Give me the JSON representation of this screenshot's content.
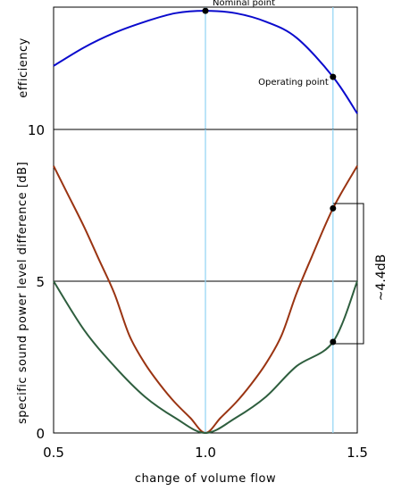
{
  "chart_data": [
    {
      "type": "line",
      "ylabel": "efficiency",
      "xlim": [
        0.5,
        1.5
      ],
      "ylim": [
        0,
        1
      ],
      "y_scale": "relative, unlabeled",
      "grid": false,
      "series": [
        {
          "color": "#0a0acd",
          "x": [
            0.5,
            0.6,
            0.7,
            0.8,
            0.9,
            1.0,
            1.1,
            1.2,
            1.3,
            1.42,
            1.5
          ],
          "y": [
            0.52,
            0.67,
            0.79,
            0.88,
            0.95,
            0.97,
            0.95,
            0.88,
            0.75,
            0.43,
            0.13
          ]
        }
      ],
      "points": [
        {
          "label": "Nominal point",
          "x": 1.0,
          "y": 0.97
        },
        {
          "label": "Operating point",
          "x": 1.42,
          "y": 0.43
        }
      ],
      "vlines": [
        1.0,
        1.42
      ]
    },
    {
      "type": "line",
      "xlabel": "change of volume flow",
      "ylabel": "specific sound power level difference [dB]",
      "xlim": [
        0.5,
        1.5
      ],
      "ylim": [
        0,
        10
      ],
      "xticks": [
        "0.5",
        "1.0",
        "1.5"
      ],
      "yticks": [
        "0",
        "5",
        "10"
      ],
      "hlines": [
        5,
        10
      ],
      "vlines": [
        1.0,
        1.42
      ],
      "grid": false,
      "series": [
        {
          "color": "#9a3412",
          "x": [
            0.5,
            0.55,
            0.6,
            0.65,
            0.7,
            0.75,
            0.8,
            0.85,
            0.9,
            0.95,
            1.0,
            1.05,
            1.1,
            1.15,
            1.2,
            1.25,
            1.3,
            1.35,
            1.42,
            1.5
          ],
          "y": [
            8.8,
            7.8,
            6.8,
            5.7,
            4.6,
            3.2,
            2.3,
            1.6,
            1.0,
            0.5,
            0.0,
            0.5,
            1.0,
            1.6,
            2.3,
            3.2,
            4.6,
            5.8,
            7.4,
            8.8
          ]
        },
        {
          "color": "#2e5e3e",
          "x": [
            0.5,
            0.6,
            0.7,
            0.8,
            0.9,
            1.0,
            1.1,
            1.2,
            1.3,
            1.42,
            1.5
          ],
          "y": [
            5.0,
            3.4,
            2.2,
            1.2,
            0.5,
            0.0,
            0.5,
            1.2,
            2.2,
            3.0,
            5.0
          ]
        }
      ],
      "points": [
        {
          "x": 1.42,
          "y": 7.4
        },
        {
          "x": 1.42,
          "y": 3.0
        }
      ],
      "annotation": "~4.4dB"
    }
  ]
}
